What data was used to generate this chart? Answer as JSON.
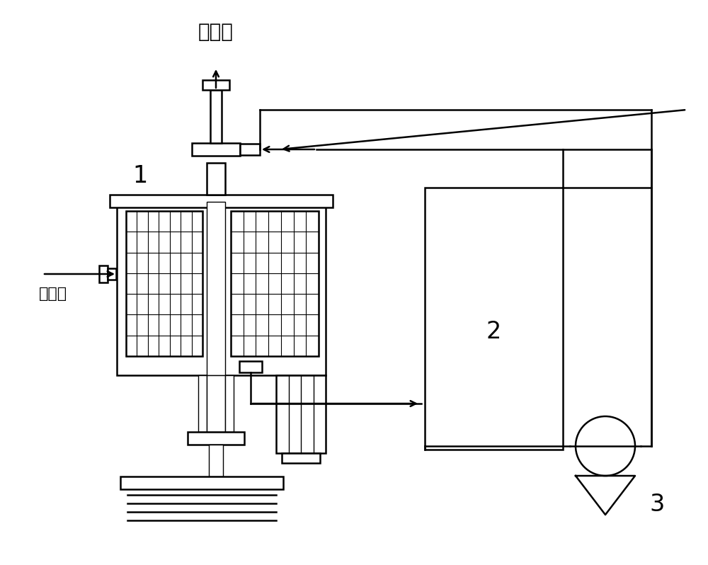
{
  "title": "净化气",
  "label_sulfur": "含硫气",
  "label_1": "1",
  "label_2": "2",
  "label_3": "3",
  "bg_color": "#ffffff",
  "line_color": "#000000",
  "lw": 1.8,
  "lw_thin": 1.0
}
